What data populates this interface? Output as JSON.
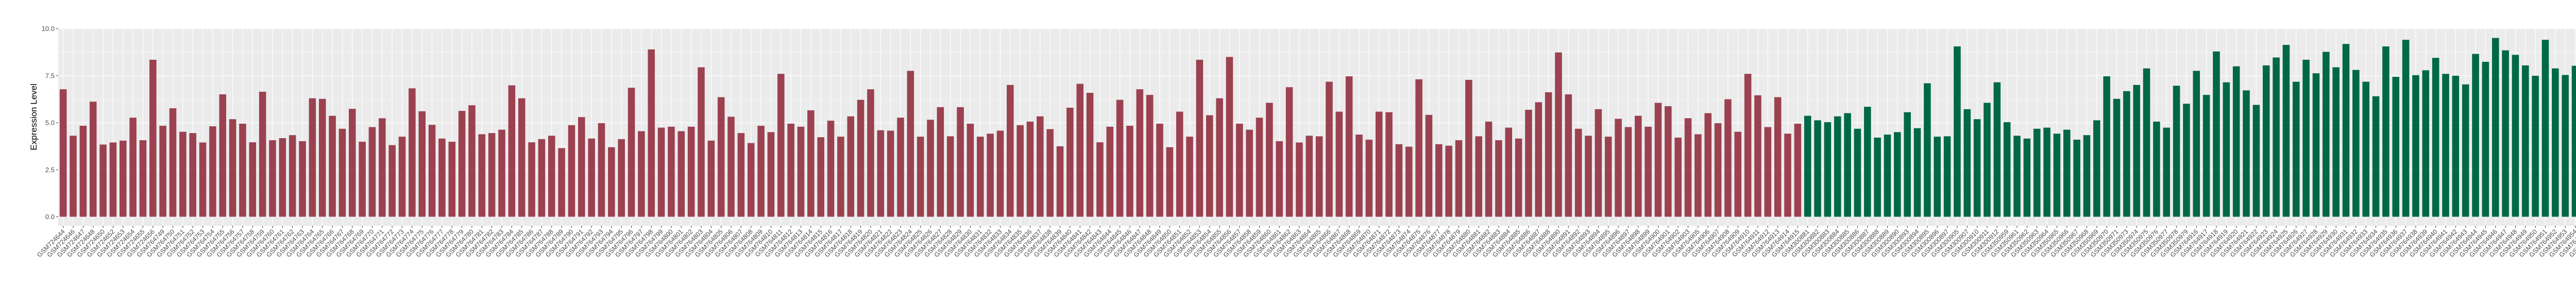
{
  "chart_data": {
    "type": "bar",
    "title": "",
    "xlabel": "",
    "ylabel": "Expression Level",
    "ylim": [
      -0.48,
      10
    ],
    "yticks": [
      "0.0",
      "2.5",
      "5.0",
      "7.5",
      "10.0"
    ],
    "ytick_values": [
      0,
      2.5,
      5,
      7.5,
      10
    ],
    "grid": true,
    "legend": "none",
    "panel_background": "#EBEBEB",
    "x_tick_rotation_deg": 45,
    "series": [
      {
        "color": "#9B4150",
        "categories": [
          "GSM724644",
          "GSM724646",
          "GSM724647",
          "GSM724648",
          "GSM724650",
          "GSM724652",
          "GSM724653",
          "GSM724654",
          "GSM724655",
          "GSM724656",
          "GSM764749",
          "GSM764750",
          "GSM764751",
          "GSM764752",
          "GSM764753",
          "GSM764754",
          "GSM764755",
          "GSM764756",
          "GSM764757",
          "GSM764758",
          "GSM764759",
          "GSM764760",
          "GSM764761",
          "GSM764762",
          "GSM764763",
          "GSM764764",
          "GSM764765",
          "GSM764766",
          "GSM764767",
          "GSM764768",
          "GSM764769",
          "GSM764770",
          "GSM764771",
          "GSM764772",
          "GSM764773",
          "GSM764774",
          "GSM764775",
          "GSM764776",
          "GSM764777",
          "GSM764778",
          "GSM764779",
          "GSM764780",
          "GSM764781",
          "GSM764782",
          "GSM764783",
          "GSM764784",
          "GSM764785",
          "GSM764786",
          "GSM764787",
          "GSM764788",
          "GSM764789",
          "GSM764790",
          "GSM764791",
          "GSM764792",
          "GSM764793",
          "GSM764794",
          "GSM764795",
          "GSM764796",
          "GSM764797",
          "GSM764798",
          "GSM764799",
          "GSM764800",
          "GSM764801",
          "GSM764802",
          "GSM764803",
          "GSM764804",
          "GSM764805",
          "GSM764806",
          "GSM764807",
          "GSM764808",
          "GSM764809",
          "GSM764810",
          "GSM764811",
          "GSM764812",
          "GSM764813",
          "GSM764814",
          "GSM764815",
          "GSM764816",
          "GSM764817",
          "GSM764818",
          "GSM764819",
          "GSM764820",
          "GSM764821",
          "GSM764822",
          "GSM764823",
          "GSM764824",
          "GSM764825",
          "GSM764826",
          "GSM764827",
          "GSM764828",
          "GSM764829",
          "GSM764830",
          "GSM764831",
          "GSM764832",
          "GSM764833",
          "GSM764834",
          "GSM764835",
          "GSM764836",
          "GSM764837",
          "GSM764838",
          "GSM764839",
          "GSM764840",
          "GSM764841",
          "GSM764842",
          "GSM764843",
          "GSM764844",
          "GSM764845",
          "GSM764846",
          "GSM764847",
          "GSM764848",
          "GSM764849",
          "GSM764850",
          "GSM764851",
          "GSM764852",
          "GSM764853",
          "GSM764854",
          "GSM764855",
          "GSM764856",
          "GSM764857",
          "GSM764858",
          "GSM764859",
          "GSM764860",
          "GSM764861",
          "GSM764862",
          "GSM764863",
          "GSM764864",
          "GSM764865",
          "GSM764866",
          "GSM764867",
          "GSM764868",
          "GSM764869",
          "GSM764870",
          "GSM764871",
          "GSM764872",
          "GSM764873",
          "GSM764874",
          "GSM764875",
          "GSM764876",
          "GSM764877",
          "GSM764878",
          "GSM764879",
          "GSM764880",
          "GSM764881",
          "GSM764882",
          "GSM764883",
          "GSM764884",
          "GSM764885",
          "GSM764886",
          "GSM764887",
          "GSM764888",
          "GSM764890",
          "GSM764891",
          "GSM764892",
          "GSM764893",
          "GSM764894",
          "GSM764895",
          "GSM764896",
          "GSM764897",
          "GSM764898",
          "GSM764899",
          "GSM764900",
          "GSM764901",
          "GSM764902",
          "GSM764903",
          "GSM764905",
          "GSM764906",
          "GSM764907",
          "GSM764908",
          "GSM764909",
          "GSM764910",
          "GSM764911",
          "GSM764912",
          "GSM764913",
          "GSM764914",
          "GSM764915"
        ],
        "values": [
          6.78,
          4.31,
          4.84,
          6.12,
          3.84,
          3.95,
          4.05,
          5.27,
          4.07,
          8.35,
          4.84,
          5.77,
          4.52,
          4.45,
          3.95,
          4.81,
          6.51,
          5.19,
          4.95,
          3.96,
          6.65,
          4.07,
          4.18,
          4.34,
          4.02,
          6.3,
          6.27,
          5.37,
          4.68,
          5.74,
          3.99,
          4.77,
          5.24,
          3.81,
          4.26,
          6.83,
          5.61,
          4.89,
          4.16,
          3.99,
          5.63,
          5.93,
          4.39,
          4.45,
          4.63,
          6.99,
          6.3,
          3.96,
          4.13,
          4.31,
          3.65,
          4.87,
          5.3,
          4.16,
          4.98,
          3.7,
          4.13,
          6.86,
          4.55,
          8.9,
          4.74,
          4.79,
          4.55,
          4.79,
          7.95,
          4.05,
          6.36,
          5.32,
          4.45,
          3.92,
          4.84,
          4.5,
          7.6,
          4.95,
          4.79,
          5.66,
          4.23,
          5.11,
          4.26,
          5.34,
          6.22,
          6.78,
          4.6,
          4.58,
          5.27,
          7.76,
          4.26,
          5.16,
          5.83,
          4.28,
          5.83,
          4.95,
          4.26,
          4.42,
          4.58,
          7.01,
          4.87,
          5.06,
          5.34,
          4.66,
          3.75,
          5.8,
          7.07,
          6.59,
          3.96,
          4.79,
          6.22,
          4.84,
          6.78,
          6.48,
          4.95,
          3.7,
          5.59,
          4.26,
          8.35,
          5.4,
          6.3,
          8.5,
          4.95,
          4.63,
          5.27,
          6.06,
          4.02,
          6.89,
          3.95,
          4.31,
          4.28,
          7.18,
          5.59,
          7.47,
          4.37,
          4.1,
          5.59,
          5.56,
          3.86,
          3.73,
          7.31,
          5.42,
          3.86,
          3.78,
          4.07,
          7.28,
          4.28,
          5.06,
          4.07,
          4.74,
          4.16,
          5.69,
          6.09,
          6.62,
          8.74,
          6.51,
          4.68,
          4.31,
          5.72,
          4.26,
          5.21,
          4.77,
          5.37,
          4.79,
          6.06,
          5.88,
          4.21,
          5.24,
          4.39,
          5.51,
          4.98,
          6.25,
          4.52,
          7.6,
          6.46,
          4.77,
          6.36,
          4.42,
          4.95
        ]
      },
      {
        "color": "#006845",
        "categories": [
          "GSM300881",
          "GSM300882",
          "GSM300883",
          "GSM300884",
          "GSM300885",
          "GSM300886",
          "GSM300887",
          "GSM300888",
          "GSM300889",
          "GSM300890",
          "GSM300893",
          "GSM300894",
          "GSM300895",
          "GSM300896",
          "GSM300897",
          "GSM300905",
          "GSM300907",
          "GSM300910",
          "GSM300911",
          "GSM300912",
          "GSM350959",
          "GSM350961",
          "GSM350962",
          "GSM350963",
          "GSM350964",
          "GSM350965",
          "GSM350966",
          "GSM350967",
          "GSM350968",
          "GSM350969",
          "GSM350970",
          "GSM350971",
          "GSM350973",
          "GSM350974",
          "GSM350975",
          "GSM350976",
          "GSM350977",
          "GSM350978",
          "GSM350979",
          "GSM764916",
          "GSM764917",
          "GSM764918",
          "GSM764919",
          "GSM764920",
          "GSM764921",
          "GSM764922",
          "GSM764923",
          "GSM764924",
          "GSM764925",
          "GSM764926",
          "GSM764927",
          "GSM764928",
          "GSM764929",
          "GSM764930",
          "GSM764931",
          "GSM764932",
          "GSM764933",
          "GSM764934",
          "GSM764935",
          "GSM764936",
          "GSM764937",
          "GSM764938",
          "GSM764939",
          "GSM764940",
          "GSM764941",
          "GSM764942",
          "GSM764943",
          "GSM764944",
          "GSM764945",
          "GSM764946",
          "GSM764947",
          "GSM764948",
          "GSM764949",
          "GSM764950",
          "GSM764951",
          "GSM764952",
          "GSM764953",
          "GSM764954",
          "GSM764955",
          "GSM764956",
          "GSM764957",
          "GSM764958",
          "GSM764959",
          "GSM764960",
          "GSM80748",
          "GSM80749"
        ],
        "values": [
          5.37,
          5.13,
          5.03,
          5.34,
          5.51,
          4.68,
          5.85,
          4.21,
          4.37,
          4.5,
          5.56,
          4.71,
          7.1,
          4.26,
          4.28,
          9.06,
          5.72,
          5.19,
          6.06,
          7.15,
          5.03,
          4.31,
          4.16,
          4.68,
          4.74,
          4.42,
          4.63,
          4.1,
          4.34,
          5.13,
          7.47,
          6.27,
          6.68,
          7.01,
          7.89,
          5.06,
          4.74,
          6.97,
          6.01,
          7.76,
          6.48,
          8.79,
          7.15,
          8.0,
          6.72,
          5.95,
          8.05,
          8.47,
          9.14,
          7.18,
          8.35,
          7.63,
          8.77,
          7.95,
          9.19,
          7.81,
          7.18,
          6.41,
          9.06,
          7.44,
          9.41,
          7.53,
          7.79,
          8.45,
          7.6,
          7.5,
          7.04,
          8.66,
          8.24,
          9.51,
          8.85,
          8.61,
          8.05,
          7.5,
          9.41,
          7.89,
          7.54,
          8.03,
          6.09,
          7.95,
          7.36,
          7.07,
          8.47,
          7.95,
          7.63,
          7.54
        ]
      }
    ]
  }
}
